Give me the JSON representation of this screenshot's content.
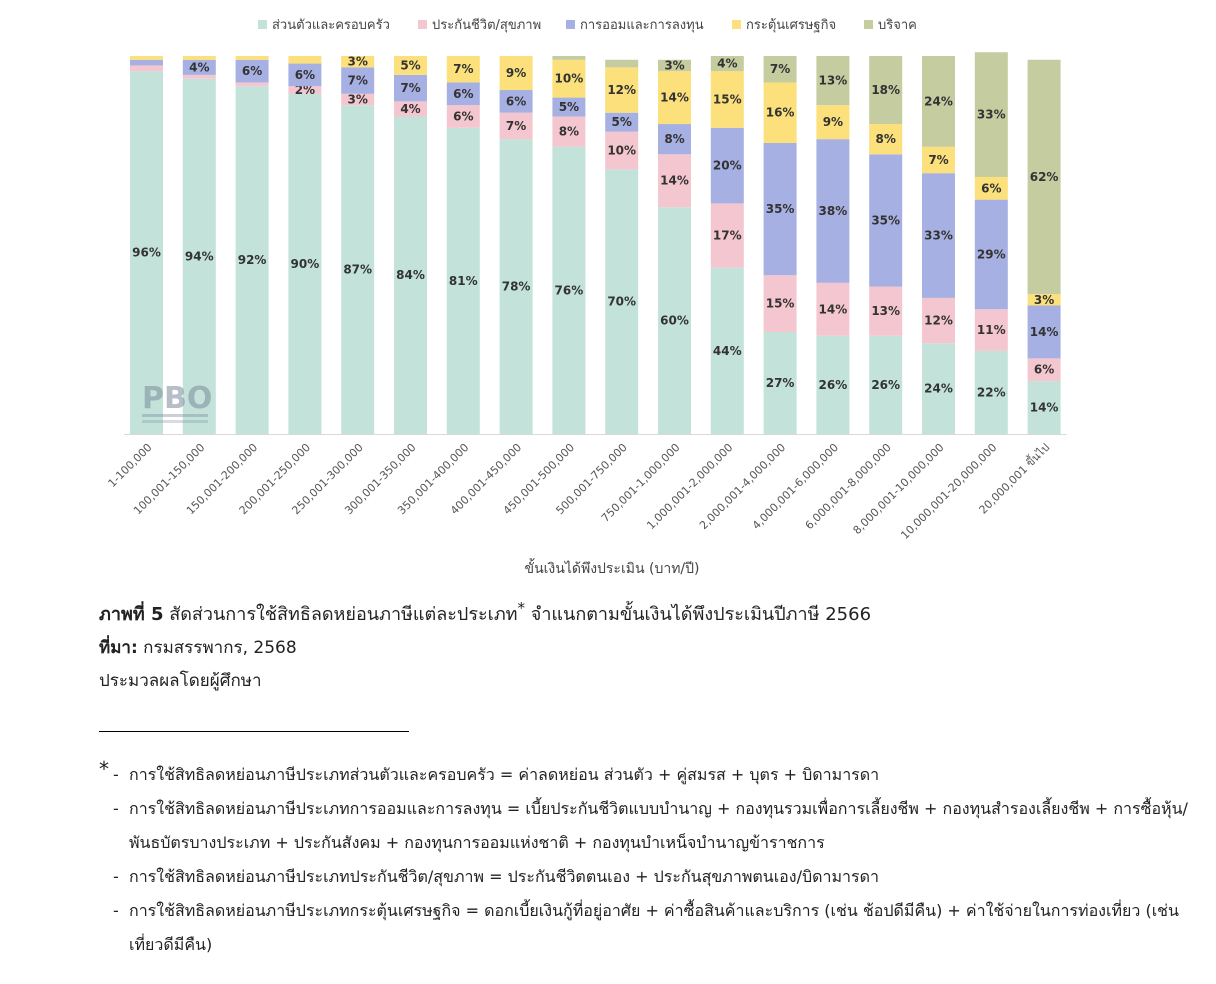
{
  "chart_data": {
    "type": "bar",
    "stacked": true,
    "percent": true,
    "xlabel": "ขั้นเงินได้พึงประเมิน (บาท/ปี)",
    "ylabel": "",
    "ylim": [
      0,
      100
    ],
    "legend_position": "top",
    "categories": [
      "1-100,000",
      "100,001-150,000",
      "150,001-200,000",
      "200,001-250,000",
      "250,001-300,000",
      "300,001-350,000",
      "350,001-400,000",
      "400,001-450,000",
      "450,001-500,000",
      "500,001-750,000",
      "750,001-1,000,000",
      "1,000,001-2,000,000",
      "2,000,001-4,000,000",
      "4,000,001-6,000,000",
      "6,000,001-8,000,000",
      "8,000,001-10,000,000",
      "10,000,001-20,000,000",
      "20,000,001 ขึ้นไป"
    ],
    "series": [
      {
        "name": "ส่วนตัวและครอบครัว",
        "color": "#c3e2da",
        "values": [
          96,
          94,
          92,
          90,
          87,
          84,
          81,
          78,
          76,
          70,
          60,
          44,
          27,
          26,
          26,
          24,
          22,
          14
        ],
        "labels": [
          "96%",
          "94%",
          "92%",
          "90%",
          "87%",
          "84%",
          "81%",
          "78%",
          "76%",
          "70%",
          "60%",
          "44%",
          "27%",
          "26%",
          "26%",
          "24%",
          "22%",
          "14%"
        ]
      },
      {
        "name": "ประกันชีวิต/สุขภาพ",
        "color": "#f4c6cf",
        "values": [
          1.5,
          1,
          1,
          2,
          3,
          4,
          6,
          7,
          8,
          10,
          14,
          17,
          15,
          14,
          13,
          12,
          11,
          6
        ],
        "labels": [
          "",
          "",
          "",
          "2%",
          "3%",
          "4%",
          "6%",
          "7%",
          "8%",
          "10%",
          "14%",
          "17%",
          "15%",
          "14%",
          "13%",
          "12%",
          "11%",
          "6%"
        ]
      },
      {
        "name": "การออมและการลงทุน",
        "color": "#a7b0e2",
        "values": [
          1.5,
          4,
          6,
          6,
          7,
          7,
          6,
          6,
          5,
          5,
          8,
          20,
          35,
          38,
          35,
          33,
          29,
          14
        ],
        "labels": [
          "",
          "4%",
          "6%",
          "6%",
          "7%",
          "7%",
          "6%",
          "6%",
          "5%",
          "5%",
          "8%",
          "20%",
          "35%",
          "38%",
          "35%",
          "33%",
          "29%",
          "14%"
        ]
      },
      {
        "name": "กระตุ้นเศรษฐกิจ",
        "color": "#fbe07c",
        "values": [
          1,
          1,
          1,
          2,
          3,
          5,
          7,
          9,
          10,
          12,
          14,
          15,
          16,
          9,
          8,
          7,
          6,
          3
        ],
        "labels": [
          "",
          "",
          "",
          "",
          "3%",
          "5%",
          "7%",
          "9%",
          "10%",
          "12%",
          "14%",
          "15%",
          "16%",
          "9%",
          "8%",
          "7%",
          "6%",
          "3%"
        ]
      },
      {
        "name": "บริจาค",
        "color": "#c4cca0",
        "values": [
          0,
          0,
          0,
          0,
          0,
          0,
          0,
          0,
          1,
          2,
          3,
          4,
          7,
          13,
          18,
          24,
          33,
          62
        ],
        "labels": [
          "",
          "",
          "",
          "",
          "",
          "",
          "",
          "",
          "",
          "",
          "3%",
          "4%",
          "7%",
          "13%",
          "18%",
          "24%",
          "33%",
          "62%"
        ]
      }
    ]
  },
  "caption": {
    "lead": "ภาพที่ 5",
    "text": "สัดส่วนการใช้สิทธิลดหย่อนภาษีแต่ละประเภท",
    "star": "*",
    "text2": "จำแนกตามขั้นเงินได้พึงประเมินปีภาษี 2566"
  },
  "source": {
    "lead": "ที่มา:",
    "text": "กรมสรรพากร, 2568"
  },
  "processed_by": "ประมวลผลโดยผู้ศึกษา",
  "watermark": "PBO",
  "footnotes": {
    "marker": "*",
    "items": [
      "การใช้สิทธิลดหย่อนภาษีประเภทส่วนตัวและครอบครัว = ค่าลดหย่อน ส่วนตัว + คู่สมรส + บุตร + บิดามารดา",
      "การใช้สิทธิลดหย่อนภาษีประเภทการออมและการลงทุน = เบี้ยประกันชีวิตแบบบำนาญ + กองทุนรวมเพื่อการเลี้ยงชีพ + กองทุนสำรองเลี้ยงชีพ + การซื้อหุ้น/พันธบัตรบางประเภท + ประกันสังคม + กองทุนการออมแห่งชาติ + กองทุนบำเหน็จบำนาญข้าราชการ",
      "การใช้สิทธิลดหย่อนภาษีประเภทประกันชีวิต/สุขภาพ = ประกันชีวิตตนเอง + ประกันสุขภาพตนเอง/บิดามารดา",
      "การใช้สิทธิลดหย่อนภาษีประเภทกระตุ้นเศรษฐกิจ = ดอกเบี้ยเงินกู้ที่อยู่อาศัย + ค่าซื้อสินค้าและบริการ (เช่น ช้อปดีมีคืน) + ค่าใช้จ่ายในการท่องเที่ยว (เช่น เที่ยวดีมีคืน)"
    ]
  }
}
